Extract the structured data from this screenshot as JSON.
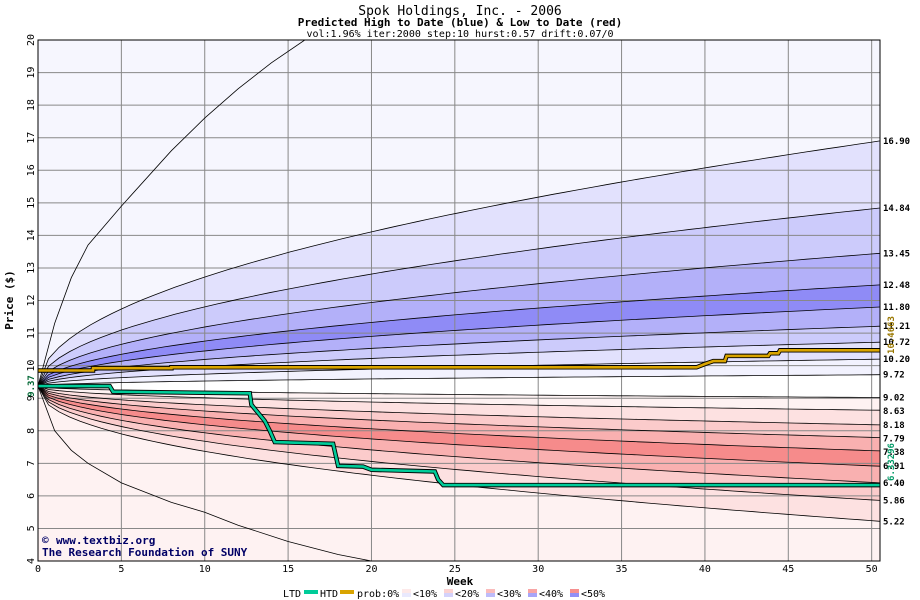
{
  "colors": {
    "blue": "#4a44f0",
    "red": "#f04444",
    "htd": "#d9a400",
    "ltd": "#00cc99",
    "start_label": "#006633",
    "htd_label": "#997700",
    "ltd_label": "#009966"
  },
  "chart_data": {
    "type": "line",
    "title": "Spok Holdings, Inc. - 2006",
    "subtitle": "Predicted High to Date (blue) &  Low to Date (red)",
    "params": "vol:1.96% iter:2000 step:10 hurst:0.57 drift:0.07/0",
    "xlabel": "Week",
    "ylabel": "Price ($)",
    "xlim": [
      0,
      50.5
    ],
    "ylim": [
      4,
      20
    ],
    "x_ticks": [
      0,
      5,
      10,
      15,
      20,
      25,
      30,
      35,
      40,
      45,
      50
    ],
    "y_ticks": [
      4,
      5,
      6,
      7,
      8,
      9,
      10,
      11,
      12,
      13,
      14,
      15,
      16,
      17,
      18,
      19,
      20
    ],
    "grid": true,
    "start_price": 9.37,
    "start_label": "9.37",
    "htd_end_label": "10.4663",
    "ltd_end_label": "6.33296",
    "high_levels": [
      {
        "label": "16.90",
        "value": 16.9
      },
      {
        "label": "14.84",
        "value": 14.84
      },
      {
        "label": "13.45",
        "value": 13.45
      },
      {
        "label": "12.48",
        "value": 12.48
      },
      {
        "label": "11.80",
        "value": 11.8
      },
      {
        "label": "11.21",
        "value": 11.21
      },
      {
        "label": "10.72",
        "value": 10.72
      },
      {
        "label": "10.20",
        "value": 10.2
      },
      {
        "label": "9.72",
        "value": 9.72
      }
    ],
    "low_levels": [
      {
        "label": "9.02",
        "value": 9.02
      },
      {
        "label": "8.63",
        "value": 8.63
      },
      {
        "label": "8.18",
        "value": 8.18
      },
      {
        "label": "7.79",
        "value": 7.79
      },
      {
        "label": "7.38",
        "value": 7.38
      },
      {
        "label": "6.91",
        "value": 6.91
      },
      {
        "label": "6.40",
        "value": 6.4
      },
      {
        "label": "5.86",
        "value": 5.86
      },
      {
        "label": "5.22",
        "value": 5.22
      }
    ],
    "high_outer_curve": [
      [
        0,
        9.37
      ],
      [
        1,
        11.3
      ],
      [
        2,
        12.7
      ],
      [
        3,
        13.7
      ],
      [
        5,
        14.9
      ],
      [
        8,
        16.6
      ],
      [
        10,
        17.6
      ],
      [
        12,
        18.5
      ],
      [
        14,
        19.3
      ],
      [
        16,
        20.0
      ]
    ],
    "low_outer_curve": [
      [
        0,
        9.37
      ],
      [
        1,
        8.0
      ],
      [
        2,
        7.4
      ],
      [
        3,
        7.0
      ],
      [
        5,
        6.4
      ],
      [
        8,
        5.8
      ],
      [
        10,
        5.5
      ],
      [
        12,
        5.1
      ],
      [
        15,
        4.6
      ],
      [
        18,
        4.2
      ],
      [
        20,
        4.0
      ]
    ],
    "htd_series": [
      [
        0,
        9.85
      ],
      [
        3.3,
        9.85
      ],
      [
        3.3,
        9.92
      ],
      [
        8,
        9.92
      ],
      [
        8,
        9.95
      ],
      [
        39.5,
        9.95
      ],
      [
        40,
        10.05
      ],
      [
        40.5,
        10.14
      ],
      [
        41.2,
        10.14
      ],
      [
        41.3,
        10.3
      ],
      [
        43.8,
        10.3
      ],
      [
        43.9,
        10.38
      ],
      [
        44.4,
        10.38
      ],
      [
        44.5,
        10.47
      ],
      [
        50.5,
        10.47
      ]
    ],
    "ltd_series": [
      [
        0,
        9.37
      ],
      [
        4.3,
        9.37
      ],
      [
        4.5,
        9.2
      ],
      [
        12.7,
        9.15
      ],
      [
        12.8,
        8.8
      ],
      [
        13.6,
        8.3
      ],
      [
        13.9,
        8.0
      ],
      [
        14.2,
        7.65
      ],
      [
        17.7,
        7.6
      ],
      [
        18,
        6.92
      ],
      [
        19.5,
        6.9
      ],
      [
        20,
        6.8
      ],
      [
        23.8,
        6.75
      ],
      [
        24,
        6.5
      ],
      [
        24.3,
        6.33
      ],
      [
        50.5,
        6.33
      ]
    ],
    "credit_line1": "www.textbiz.org",
    "credit_line2": "The Research Foundation of SUNY",
    "credit_symbol": "©",
    "legend": {
      "ltd": "LTD",
      "htd": "HTD",
      "prob": "prob:0%",
      "items": [
        "<10%",
        "<20%",
        "<30%",
        "<40%",
        "<50%"
      ]
    }
  }
}
